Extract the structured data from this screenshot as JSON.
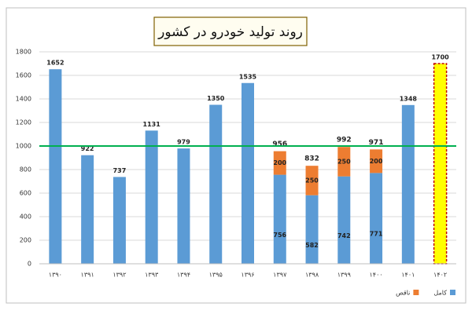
{
  "chart_data": {
    "type": "stacked_bar",
    "title": "روند تولید خودرو در کشور",
    "categories": [
      "۱۳۹۰",
      "۱۳۹۱",
      "۱۳۹۲",
      "۱۳۹۳",
      "۱۳۹۴",
      "۱۳۹۵",
      "۱۳۹۶",
      "۱۳۹۷",
      "۱۳۹۸",
      "۱۳۹۹",
      "۱۴۰۰",
      "۱۴۰۱",
      "۱۴۰۲"
    ],
    "series": [
      {
        "name": "کامل",
        "color": "#5b9bd5",
        "colors": [
          "#5b9bd5",
          "#5b9bd5",
          "#5b9bd5",
          "#5b9bd5",
          "#5b9bd5",
          "#5b9bd5",
          "#5b9bd5",
          "#5b9bd5",
          "#5b9bd5",
          "#5b9bd5",
          "#5b9bd5",
          "#5b9bd5",
          "#ffff00"
        ],
        "values": [
          1652,
          922,
          737,
          1131,
          979,
          1350,
          1535,
          756,
          582,
          742,
          771,
          1348,
          1700
        ]
      },
      {
        "name": "ناقص",
        "color": "#ed7d31",
        "values": [
          null,
          null,
          null,
          null,
          null,
          null,
          null,
          200,
          250,
          250,
          200,
          null,
          null
        ]
      }
    ],
    "totals": [
      null,
      null,
      null,
      null,
      null,
      null,
      null,
      956,
      832,
      992,
      971,
      null,
      null
    ],
    "reference_line": {
      "value": 1000,
      "color": "#00b050"
    },
    "ylim": [
      0,
      1800
    ],
    "yticks": [
      0,
      200,
      400,
      600,
      800,
      1000,
      1200,
      1400,
      1600,
      1800
    ],
    "grid": true,
    "legend": "bottom-right"
  }
}
